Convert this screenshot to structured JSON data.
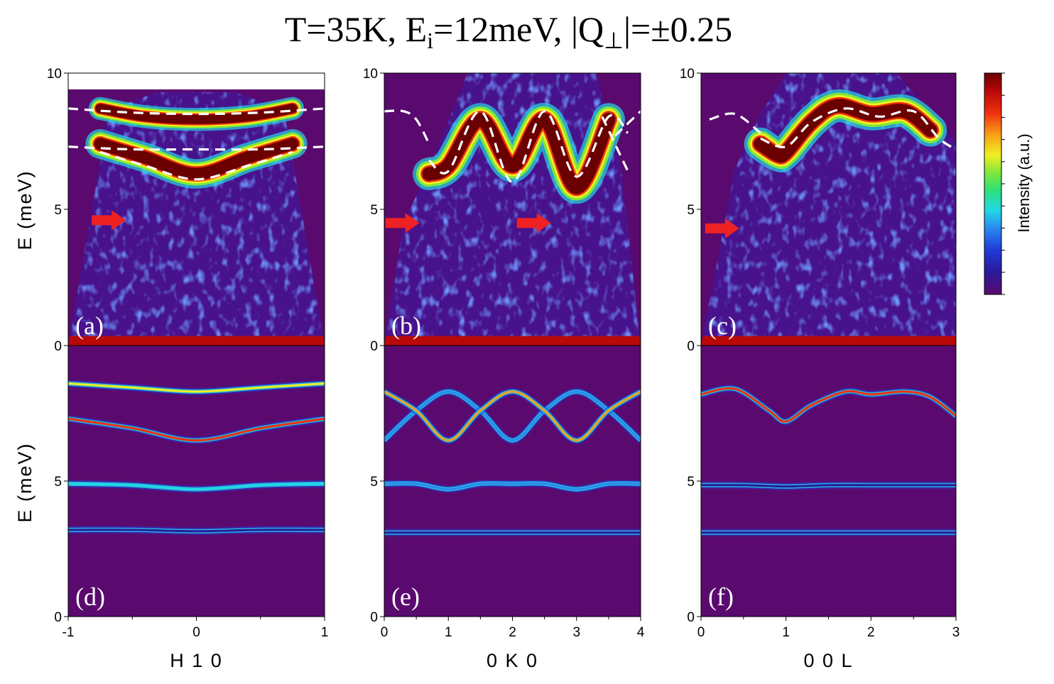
{
  "title": {
    "prefix": "T=35K, E",
    "sub_i": "i",
    "mid": "=12meV, |Q",
    "sub_perp": "⊥",
    "suffix": "|=±0.25"
  },
  "colorbar": {
    "label": "Intensity (a.u.)",
    "colors": [
      "#5a0a6e",
      "#2a1a9a",
      "#1f3ad8",
      "#2a8af0",
      "#22d8e6",
      "#2ee07a",
      "#7ee83a",
      "#f0f020",
      "#f8a018",
      "#f03010",
      "#b80808",
      "#6a0000"
    ]
  },
  "colors": {
    "background": "#5a0a6e",
    "arrow": "#ee2222",
    "dashed": "#ffffff"
  },
  "ylabel": "E (meV)",
  "chart_data": [
    {
      "type": "heatmap",
      "panel": "(a)",
      "row": "top",
      "col": 0,
      "kind": "data",
      "xlim": [
        -1,
        1
      ],
      "ylim": [
        0,
        10
      ],
      "yticks": [
        0,
        5,
        10
      ],
      "energy_top": 9.4,
      "coverage": [
        [
          -1,
          0
        ],
        [
          -0.7,
          8.2
        ],
        [
          -0.6,
          8.8
        ],
        [
          -0.3,
          9.3
        ],
        [
          0.3,
          9.3
        ],
        [
          0.6,
          8.8
        ],
        [
          0.7,
          8.2
        ],
        [
          1,
          0
        ]
      ],
      "bands": [
        {
          "x": [
            -0.75,
            -0.4,
            0,
            0.4,
            0.75
          ],
          "y": [
            8.7,
            8.4,
            8.3,
            8.4,
            8.7
          ],
          "width": 0.35,
          "color": "#6a0000"
        },
        {
          "x": [
            -0.75,
            -0.4,
            0,
            0.4,
            0.75
          ],
          "y": [
            7.4,
            6.9,
            6.3,
            6.9,
            7.4
          ],
          "width": 0.45,
          "color": "#6a0000"
        }
      ],
      "arrows": [
        {
          "x": -0.55,
          "y": 4.6
        }
      ],
      "dashed_lines": [
        {
          "x": [
            -1,
            -0.5,
            0,
            0.5,
            1
          ],
          "y": [
            8.7,
            8.55,
            8.5,
            8.55,
            8.7
          ]
        },
        {
          "x": [
            -1,
            -0.5,
            0,
            0.5,
            1
          ],
          "y": [
            7.3,
            7.2,
            7.2,
            7.2,
            7.3
          ]
        },
        {
          "x": [
            -0.75,
            -0.4,
            0,
            0.4,
            0.75
          ],
          "y": [
            7.1,
            6.6,
            6.1,
            6.6,
            7.1
          ]
        }
      ]
    },
    {
      "type": "heatmap",
      "panel": "(b)",
      "row": "top",
      "col": 1,
      "kind": "data",
      "xlim": [
        0,
        4
      ],
      "ylim": [
        0,
        10
      ],
      "yticks": [
        0,
        5,
        10
      ],
      "coverage": [
        [
          0,
          0
        ],
        [
          0.3,
          4.5
        ],
        [
          0.7,
          6.5
        ],
        [
          1.3,
          10
        ],
        [
          3.3,
          10
        ],
        [
          3.7,
          6.5
        ],
        [
          4,
          0
        ]
      ],
      "bands": [
        {
          "x": [
            0.7,
            1.0,
            1.5,
            2.0,
            2.5,
            3.0,
            3.5
          ],
          "y": [
            6.3,
            6.6,
            8.3,
            6.6,
            8.3,
            5.8,
            8.3
          ],
          "width": 0.5,
          "color": "#6a0000"
        }
      ],
      "arrows": [
        {
          "x": 0.55,
          "y": 4.5
        },
        {
          "x": 2.6,
          "y": 4.5
        }
      ],
      "dashed_lines": [
        {
          "x": [
            0,
            0.3,
            0.5,
            0.7
          ],
          "y": [
            8.6,
            8.6,
            8.3,
            7.4
          ]
        },
        {
          "x": [
            0.7,
            1.0,
            1.5,
            2.0,
            2.5,
            3.0,
            3.5,
            3.8
          ],
          "y": [
            6.8,
            6.4,
            8.6,
            6.0,
            8.6,
            6.2,
            8.4,
            7.8
          ]
        },
        {
          "x": [
            3.6,
            4
          ],
          "y": [
            7.7,
            8.6
          ]
        },
        {
          "x": [
            3.4,
            3.8
          ],
          "y": [
            8.4,
            6.4
          ]
        }
      ]
    },
    {
      "type": "heatmap",
      "panel": "(c)",
      "row": "top",
      "col": 2,
      "kind": "data",
      "xlim": [
        0,
        3
      ],
      "ylim": [
        0,
        10
      ],
      "yticks": [
        0,
        5,
        10
      ],
      "coverage": [
        [
          0,
          0
        ],
        [
          0.4,
          6.5
        ],
        [
          0.7,
          8.5
        ],
        [
          1.0,
          10
        ],
        [
          2.3,
          10
        ],
        [
          2.7,
          8.5
        ],
        [
          3.0,
          7.5
        ],
        [
          3,
          0
        ]
      ],
      "bands": [
        {
          "x": [
            0.7,
            0.9,
            1.0,
            1.3,
            1.6,
            2.0,
            2.4,
            2.7
          ],
          "y": [
            7.4,
            7.0,
            7.1,
            8.2,
            8.8,
            8.5,
            8.6,
            7.9
          ],
          "width": 0.5,
          "color": "#6a0000"
        }
      ],
      "arrows": [
        {
          "x": 0.45,
          "y": 4.3
        }
      ],
      "dashed_lines": [
        {
          "x": [
            0.1,
            0.4,
            0.7
          ],
          "y": [
            8.3,
            8.5,
            7.8
          ]
        },
        {
          "x": [
            0.7,
            1.0,
            1.3,
            1.7,
            2.1,
            2.5,
            2.8,
            3.0
          ],
          "y": [
            7.6,
            7.3,
            8.2,
            8.7,
            8.4,
            8.6,
            7.6,
            7.2
          ]
        }
      ]
    },
    {
      "type": "heatmap",
      "panel": "(d)",
      "row": "bottom",
      "col": 0,
      "kind": "simulation",
      "xlim": [
        -1,
        1
      ],
      "ylim": [
        0,
        10
      ],
      "yticks": [
        0,
        5
      ],
      "xticks": [
        -1,
        0,
        1
      ],
      "xlabel": "H 1 0",
      "series": [
        {
          "name": "band1",
          "x": [
            -1,
            -0.5,
            0,
            0.5,
            1
          ],
          "y": [
            8.6,
            8.45,
            8.3,
            8.45,
            8.6
          ],
          "color": "#f0f020"
        },
        {
          "name": "band2",
          "x": [
            -1,
            -0.5,
            0,
            0.5,
            1
          ],
          "y": [
            7.3,
            6.95,
            6.5,
            6.95,
            7.3
          ],
          "color": "#f03010"
        },
        {
          "name": "band3",
          "x": [
            -1,
            -0.5,
            0,
            0.5,
            1
          ],
          "y": [
            4.9,
            4.85,
            4.7,
            4.85,
            4.9
          ],
          "color": "#22d8e6"
        },
        {
          "name": "band4",
          "x": [
            -1,
            -0.5,
            0,
            0.5,
            1
          ],
          "y": [
            3.2,
            3.2,
            3.15,
            3.2,
            3.2
          ],
          "color": "#2a1a9a"
        }
      ]
    },
    {
      "type": "heatmap",
      "panel": "(e)",
      "row": "bottom",
      "col": 1,
      "kind": "simulation",
      "xlim": [
        0,
        4
      ],
      "ylim": [
        0,
        10
      ],
      "yticks": [
        0,
        5
      ],
      "xticks": [
        0,
        1,
        2,
        3,
        4
      ],
      "xlabel": "0 K 0",
      "series": [
        {
          "name": "branchA",
          "x": [
            0,
            0.5,
            1,
            1.5,
            2,
            2.5,
            3,
            3.5,
            4
          ],
          "y": [
            6.5,
            7.6,
            8.3,
            7.6,
            6.5,
            7.6,
            8.3,
            7.6,
            6.5
          ],
          "color": "#2a8af0"
        },
        {
          "name": "branchB",
          "x": [
            0,
            0.5,
            1,
            1.5,
            2,
            2.5,
            3,
            3.5,
            4
          ],
          "y": [
            8.3,
            7.6,
            6.5,
            7.6,
            8.3,
            7.6,
            6.5,
            7.6,
            8.3
          ],
          "color": "#f8a018"
        },
        {
          "name": "band3",
          "x": [
            0,
            0.5,
            1,
            1.5,
            2,
            2.5,
            3,
            3.5,
            4
          ],
          "y": [
            4.9,
            4.9,
            4.7,
            4.9,
            4.9,
            4.9,
            4.7,
            4.9,
            4.9
          ],
          "color": "#2a8af0"
        },
        {
          "name": "band4",
          "x": [
            0,
            1,
            2,
            3,
            4
          ],
          "y": [
            3.1,
            3.1,
            3.1,
            3.1,
            3.1
          ],
          "color": "#2a1a9a"
        }
      ]
    },
    {
      "type": "heatmap",
      "panel": "(f)",
      "row": "bottom",
      "col": 2,
      "kind": "simulation",
      "xlim": [
        0,
        3
      ],
      "ylim": [
        0,
        10
      ],
      "yticks": [
        0,
        5
      ],
      "xticks": [
        0,
        1,
        2,
        3
      ],
      "xlabel": "0 0 L",
      "series": [
        {
          "name": "band1",
          "x": [
            0,
            0.4,
            0.8,
            1.0,
            1.3,
            1.7,
            2.0,
            2.4,
            2.7,
            3.0
          ],
          "y": [
            8.2,
            8.4,
            7.6,
            7.2,
            7.8,
            8.3,
            8.2,
            8.3,
            8.1,
            7.4
          ],
          "color": "#f03010"
        },
        {
          "name": "band3",
          "x": [
            0,
            0.5,
            1.0,
            1.5,
            2,
            3
          ],
          "y": [
            4.85,
            4.85,
            4.8,
            4.85,
            4.85,
            4.85
          ],
          "color": "#2a1a9a"
        },
        {
          "name": "band4",
          "x": [
            0,
            1,
            2,
            3
          ],
          "y": [
            3.1,
            3.1,
            3.1,
            3.1
          ],
          "color": "#2a1a9a"
        }
      ]
    }
  ]
}
